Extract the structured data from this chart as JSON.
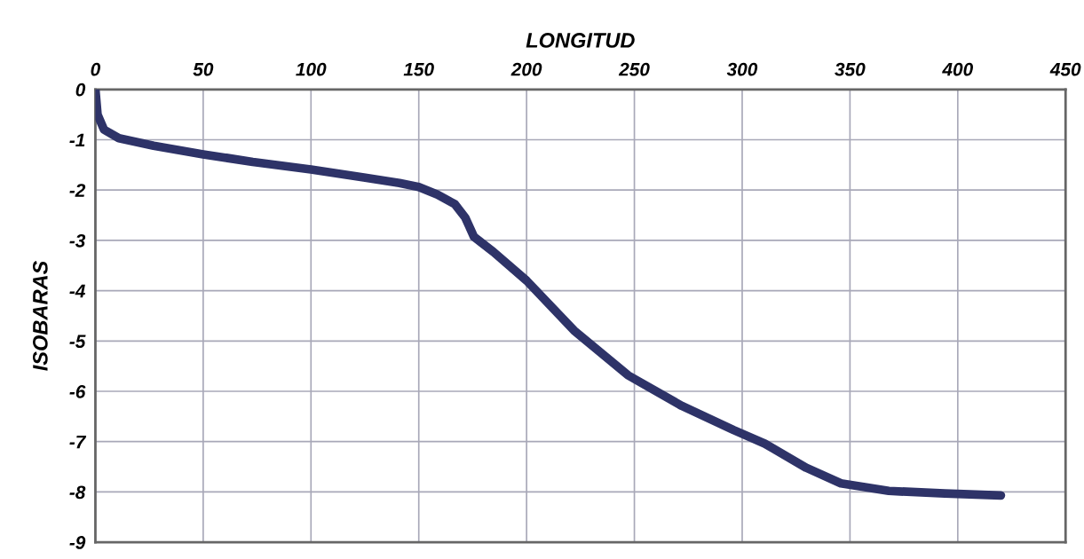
{
  "chart_data": {
    "type": "line",
    "xlabel": "LONGITUD",
    "ylabel": "ISOBARAS",
    "x": [
      0,
      1,
      4,
      10.9,
      27,
      50,
      73,
      100,
      124.5,
      141,
      150,
      158.6,
      166.7,
      171.6,
      175.6,
      184.6,
      200,
      222,
      247,
      272,
      296,
      310.5,
      329.7,
      345.8,
      368,
      394,
      420
    ],
    "series": [
      {
        "color": "#2e3368",
        "values": [
          0,
          -0.5,
          -0.8,
          -0.97,
          -1.12,
          -1.29,
          -1.44,
          -1.59,
          -1.75,
          -1.86,
          -1.94,
          -2.09,
          -2.28,
          -2.55,
          -2.93,
          -3.23,
          -3.8,
          -4.79,
          -5.68,
          -6.29,
          -6.77,
          -7.04,
          -7.52,
          -7.83,
          -7.98,
          -8.03,
          -8.07
        ]
      }
    ],
    "xlim": [
      0,
      450
    ],
    "xticks": [
      0,
      50,
      100,
      150,
      200,
      250,
      300,
      350,
      400,
      450
    ],
    "ylim": [
      -9,
      0
    ],
    "yticks": [
      0,
      -1,
      -2,
      -3,
      -4,
      -5,
      -6,
      -7,
      -8,
      -9
    ],
    "grid": true,
    "marker": "none",
    "line_style": "solid"
  }
}
